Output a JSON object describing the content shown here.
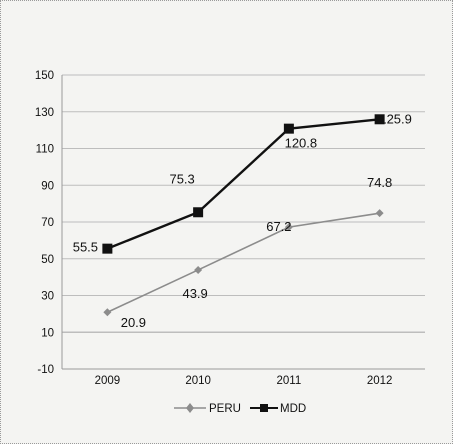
{
  "chart_data": {
    "type": "line",
    "categories": [
      "2009",
      "2010",
      "2011",
      "2012"
    ],
    "series": [
      {
        "name": "PERU",
        "values": [
          20.9,
          43.9,
          67.2,
          74.8
        ],
        "labels": [
          "20.9",
          "43.9",
          "67.2",
          "74.8"
        ],
        "color": "#8c8c8c",
        "marker": "diamond"
      },
      {
        "name": "MDD",
        "values": [
          55.5,
          75.3,
          120.8,
          125.9
        ],
        "labels": [
          "55.5",
          "75.3",
          "120.8",
          "125.9"
        ],
        "color": "#111111",
        "marker": "square"
      }
    ],
    "yticks": [
      "-10",
      "10",
      "30",
      "50",
      "70",
      "90",
      "110",
      "130",
      "150"
    ],
    "ylim": [
      -10,
      150
    ],
    "grid": true,
    "legend": "bottom"
  }
}
